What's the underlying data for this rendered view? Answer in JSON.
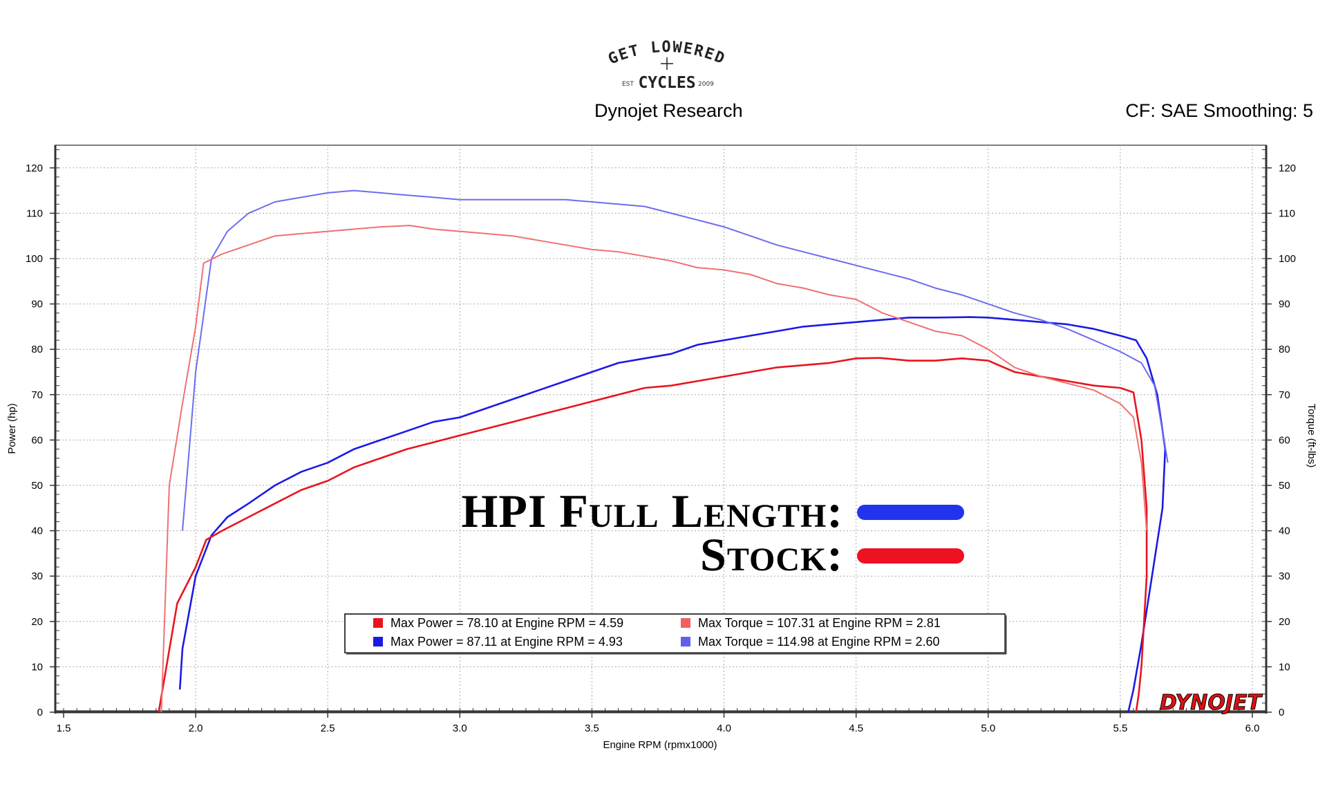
{
  "header": {
    "logo_lines": [
      "GET LOWERED",
      "EST",
      "CYCLES",
      "2009"
    ],
    "title": "Dynojet Research",
    "correction": "CF: SAE Smoothing: 5"
  },
  "legend": {
    "entries": [
      {
        "label": "HPI Full Length:",
        "color": "#2233ee"
      },
      {
        "label": "Stock:",
        "color": "#ee1122"
      }
    ]
  },
  "stats_box": {
    "rows": [
      {
        "left": "Max Power = 78.10 at Engine RPM = 4.59",
        "left_color": "#e8141e",
        "right": "Max Torque = 107.31 at Engine RPM = 2.81",
        "right_color": "#f06060"
      },
      {
        "left": "Max Power = 87.11 at Engine RPM = 4.93",
        "left_color": "#1a1ae6",
        "right": "Max Torque = 114.98 at Engine RPM = 2.60",
        "right_color": "#6060f0"
      }
    ]
  },
  "watermark": "DYNOJET",
  "chart_data": {
    "type": "line",
    "xlabel": "Engine RPM (rpmx1000)",
    "ylabel": "Power (hp)",
    "y2label": "Torque (ft-lbs)",
    "xlim": [
      1.5,
      6.0
    ],
    "ylim": [
      0,
      125
    ],
    "x_ticks": [
      "1.5",
      "2.0",
      "2.5",
      "3.0",
      "3.5",
      "4.0",
      "4.5",
      "5.0",
      "5.5",
      "6.0"
    ],
    "y_ticks": [
      "0",
      "10",
      "20",
      "30",
      "40",
      "50",
      "60",
      "70",
      "80",
      "90",
      "100",
      "110",
      "120"
    ],
    "grid": true,
    "series": [
      {
        "name": "HPI Full Length:",
        "kind": "power",
        "color": "#1a1ae6",
        "x": [
          1.94,
          1.95,
          2.0,
          2.06,
          2.12,
          2.2,
          2.3,
          2.4,
          2.5,
          2.6,
          2.7,
          2.8,
          2.9,
          3.0,
          3.1,
          3.2,
          3.3,
          3.4,
          3.5,
          3.6,
          3.7,
          3.8,
          3.9,
          4.0,
          4.1,
          4.2,
          4.3,
          4.4,
          4.5,
          4.6,
          4.7,
          4.8,
          4.93,
          5.0,
          5.1,
          5.2,
          5.3,
          5.4,
          5.5,
          5.56,
          5.6,
          5.64,
          5.67,
          5.66,
          5.62,
          5.58,
          5.55,
          5.53
        ],
        "y": [
          5,
          14,
          30,
          39,
          43,
          46,
          50,
          53,
          55,
          58,
          60,
          62,
          64,
          65,
          67,
          69,
          71,
          73,
          75,
          77,
          78,
          79,
          81,
          82,
          83,
          84,
          85,
          85.5,
          86,
          86.5,
          87,
          87,
          87.1,
          87,
          86.5,
          86,
          85.5,
          84.5,
          83,
          82,
          78,
          70,
          58,
          45,
          30,
          15,
          5,
          0
        ]
      },
      {
        "name": "Stock:",
        "kind": "power",
        "color": "#e8141e",
        "x": [
          1.86,
          1.93,
          2.0,
          2.04,
          2.1,
          2.2,
          2.3,
          2.4,
          2.5,
          2.6,
          2.7,
          2.8,
          2.9,
          3.0,
          3.1,
          3.2,
          3.3,
          3.4,
          3.5,
          3.6,
          3.7,
          3.8,
          3.9,
          4.0,
          4.1,
          4.2,
          4.3,
          4.4,
          4.5,
          4.59,
          4.7,
          4.8,
          4.9,
          5.0,
          5.1,
          5.2,
          5.3,
          5.4,
          5.5,
          5.55,
          5.58,
          5.6,
          5.6,
          5.59,
          5.58,
          5.57,
          5.56
        ],
        "y": [
          0,
          24,
          32,
          38,
          40,
          43,
          46,
          49,
          51,
          54,
          56,
          58,
          59.5,
          61,
          62.5,
          64,
          65.5,
          67,
          68.5,
          70,
          71.5,
          72,
          73,
          74,
          75,
          76,
          76.5,
          77,
          78,
          78.1,
          77.5,
          77.5,
          78,
          77.5,
          75,
          74,
          73,
          72,
          71.5,
          70.5,
          60,
          45,
          30,
          20,
          10,
          4,
          0
        ]
      },
      {
        "name": "HPI Full Length:",
        "kind": "torque",
        "color": "#6c6cf0",
        "x": [
          1.95,
          2.0,
          2.06,
          2.12,
          2.2,
          2.3,
          2.4,
          2.5,
          2.6,
          2.7,
          2.8,
          2.9,
          3.0,
          3.1,
          3.2,
          3.3,
          3.4,
          3.5,
          3.6,
          3.7,
          3.8,
          3.9,
          4.0,
          4.1,
          4.2,
          4.3,
          4.4,
          4.5,
          4.6,
          4.7,
          4.8,
          4.9,
          5.0,
          5.1,
          5.2,
          5.3,
          5.4,
          5.5,
          5.58,
          5.63,
          5.66,
          5.68
        ],
        "y": [
          40,
          75,
          100,
          106,
          110,
          112.5,
          113.5,
          114.5,
          115,
          114.5,
          114,
          113.5,
          113,
          113,
          113,
          113,
          113,
          112.5,
          112,
          111.5,
          110,
          108.5,
          107,
          105,
          103,
          101.5,
          100,
          98.5,
          97,
          95.5,
          93.5,
          92,
          90,
          88,
          86.5,
          84.5,
          82,
          79.5,
          77,
          72,
          62,
          55
        ]
      },
      {
        "name": "Stock:",
        "kind": "torque",
        "color": "#f07070",
        "x": [
          1.87,
          1.9,
          1.95,
          2.0,
          2.03,
          2.1,
          2.2,
          2.3,
          2.4,
          2.5,
          2.6,
          2.7,
          2.81,
          2.9,
          3.0,
          3.1,
          3.2,
          3.3,
          3.4,
          3.5,
          3.6,
          3.7,
          3.8,
          3.9,
          4.0,
          4.1,
          4.2,
          4.3,
          4.4,
          4.5,
          4.6,
          4.7,
          4.8,
          4.9,
          5.0,
          5.1,
          5.2,
          5.3,
          5.4,
          5.5,
          5.55,
          5.58,
          5.6
        ],
        "y": [
          0,
          50,
          68,
          85,
          99,
          101,
          103,
          105,
          105.5,
          106,
          106.5,
          107,
          107.3,
          106.5,
          106,
          105.5,
          105,
          104,
          103,
          102,
          101.5,
          100.5,
          99.5,
          98,
          97.5,
          96.5,
          94.5,
          93.5,
          92,
          91,
          88,
          86,
          84,
          83,
          80,
          76,
          74,
          72.5,
          71,
          68,
          65,
          55,
          40
        ]
      }
    ]
  }
}
